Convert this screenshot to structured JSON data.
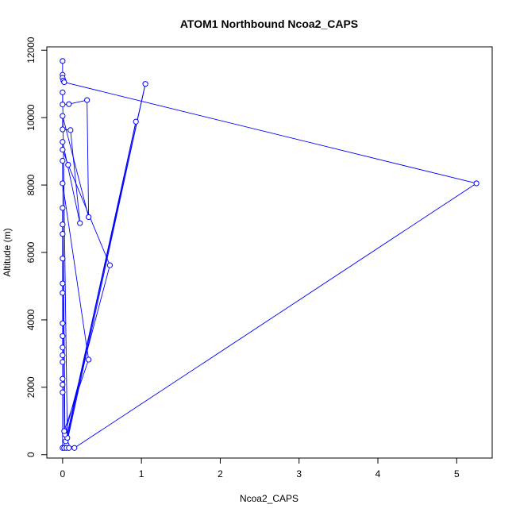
{
  "chart_data": {
    "type": "line",
    "title": "ATOM1 Northbound Ncoa2_CAPS",
    "xlabel": "Ncoa2_CAPS",
    "ylabel": "Altitude (m)",
    "xlim": [
      -0.2,
      5.45
    ],
    "ylim": [
      -100,
      12100
    ],
    "x_ticks": [
      0,
      1,
      2,
      3,
      4,
      5
    ],
    "y_ticks": [
      0,
      2000,
      4000,
      6000,
      8000,
      10000,
      12000
    ],
    "grid": false,
    "legend": "none",
    "series": [
      {
        "color": "#0000ff",
        "points": [
          [
            0.0,
            11680
          ],
          [
            0.0,
            11270
          ],
          [
            0.0,
            11180
          ],
          [
            0.01,
            11100
          ],
          [
            0.02,
            11050
          ],
          [
            5.25,
            8050
          ],
          [
            0.15,
            200
          ],
          [
            0.05,
            300
          ],
          [
            1.05,
            11000
          ],
          [
            0.04,
            400
          ],
          [
            0.93,
            9880
          ],
          [
            0.06,
            500
          ],
          [
            0.0,
            10750
          ],
          [
            0.0,
            10390
          ],
          [
            0.08,
            10400
          ],
          [
            0.31,
            10520
          ],
          [
            0.33,
            7050
          ],
          [
            0.0,
            10050
          ],
          [
            0.0,
            9650
          ],
          [
            0.1,
            9630
          ],
          [
            0.22,
            6870
          ],
          [
            0.0,
            9280
          ],
          [
            0.0,
            9050
          ],
          [
            0.07,
            8600
          ],
          [
            0.6,
            5620
          ],
          [
            0.03,
            600
          ],
          [
            0.0,
            8720
          ],
          [
            0.0,
            8050
          ],
          [
            0.33,
            2820
          ],
          [
            0.02,
            700
          ],
          [
            0.0,
            7320
          ],
          [
            0.0,
            6830
          ],
          [
            0.0,
            6550
          ],
          [
            0.0,
            5820
          ],
          [
            0.0,
            5080
          ],
          [
            0.0,
            4800
          ],
          [
            0.0,
            3900
          ],
          [
            0.0,
            3520
          ],
          [
            0.0,
            3180
          ],
          [
            0.0,
            2950
          ],
          [
            0.0,
            2750
          ],
          [
            0.0,
            2250
          ],
          [
            0.0,
            2080
          ],
          [
            0.0,
            1850
          ],
          [
            0.0,
            200
          ],
          [
            0.02,
            200
          ],
          [
            0.05,
            200
          ],
          [
            0.08,
            200
          ]
        ]
      }
    ]
  }
}
